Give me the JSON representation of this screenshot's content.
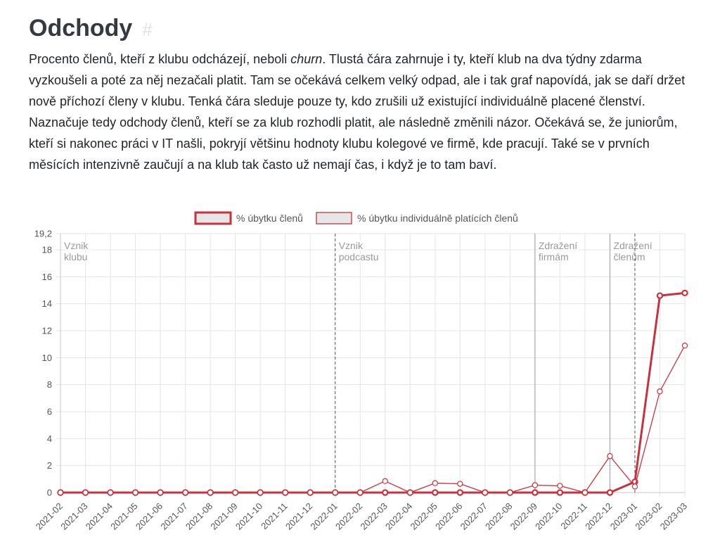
{
  "section": {
    "title": "Odchody",
    "anchor": "#",
    "intro_before": "Procento členů, kteří z klubu odcházejí, neboli ",
    "intro_em": "churn",
    "intro_after": ". Tlustá čára zahrnuje i ty, kteří klub na dva týdny zdarma vyzkoušeli a poté za něj nezačali platit. Tam se očekává celkem velký odpad, ale i tak graf napovídá, jak se daří držet nově příchozí členy v klubu. Tenká čára sleduje pouze ty, kdo zrušili už existující individuálně placené členství. Naznačuje tedy odchody členů, kteří se za klub rozhodli platit, ale následně změnili názor. Očekává se, že juniorům, kteří si nakonec práci v IT našli, pokryjí většinu hodnoty klubu kolegové ve firmě, kde pracují. Také se v prvních měsících intenzivně zaučují a na klub tak často už nemají čas, i když je to tam baví."
  },
  "chart_data": {
    "type": "line",
    "title": "",
    "xlabel": "",
    "ylabel": "",
    "categories": [
      "2021-02",
      "2021-03",
      "2021-04",
      "2021-05",
      "2021-06",
      "2021-07",
      "2021-08",
      "2021-09",
      "2021-10",
      "2021-11",
      "2021-12",
      "2022-01",
      "2022-02",
      "2022-03",
      "2022-04",
      "2022-05",
      "2022-06",
      "2022-07",
      "2022-08",
      "2022-09",
      "2022-10",
      "2022-11",
      "2022-12",
      "2023-01",
      "2023-02",
      "2023-03"
    ],
    "series": [
      {
        "name": "% úbytku členů",
        "color": "#c8323e",
        "weight": "thick",
        "values": [
          0,
          0,
          0,
          0,
          0,
          0,
          0,
          0,
          0,
          0,
          0,
          0,
          0,
          0,
          0,
          0,
          0,
          0,
          0,
          0,
          0,
          0,
          0,
          0.8,
          14.6,
          14.8
        ]
      },
      {
        "name": "% úbytku individuálně platících členů",
        "color": "#c8323e",
        "weight": "thin",
        "values": [
          0,
          0,
          0,
          0,
          0,
          0,
          0,
          0,
          0,
          0,
          0,
          0,
          0,
          0.85,
          0,
          0.7,
          0.65,
          0,
          0,
          0.55,
          0.5,
          0,
          2.7,
          0.45,
          7.5,
          10.9
        ]
      }
    ],
    "ylim": [
      0,
      19.2
    ],
    "yticks": [
      "0",
      "2",
      "4",
      "6",
      "8",
      "10",
      "12",
      "14",
      "16",
      "18",
      "19,2"
    ],
    "ytick_values": [
      0,
      2,
      4,
      6,
      8,
      10,
      12,
      14,
      16,
      18,
      19.2
    ],
    "grid": true,
    "legend": "top-center",
    "annotations": [
      {
        "category": "2021-02",
        "lines": [
          "Vznik",
          "klubu"
        ],
        "line": "none"
      },
      {
        "category": "2022-01",
        "lines": [
          "Vznik",
          "podcastu"
        ],
        "line": "dashed"
      },
      {
        "category": "2022-09",
        "lines": [
          "Zdražení",
          "firmám"
        ],
        "line": "solid"
      },
      {
        "category": "2022-12",
        "lines": [
          "Zdražení",
          "členům"
        ],
        "line": "solid"
      },
      {
        "category": "2023-01",
        "lines": [],
        "line": "dashed"
      }
    ]
  }
}
